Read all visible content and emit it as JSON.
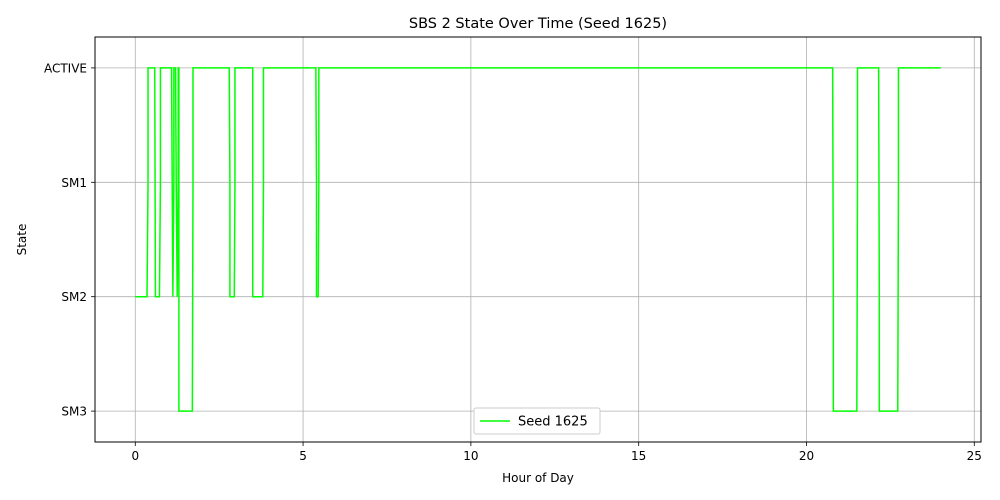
{
  "chart_data": {
    "type": "line",
    "step": true,
    "title": "SBS 2 State Over Time (Seed 1625)",
    "xlabel": "Hour of Day",
    "ylabel": "State",
    "xlim": [
      -1.2,
      25.2
    ],
    "xticks": [
      0,
      5,
      10,
      15,
      20,
      25
    ],
    "xtick_labels": [
      "0",
      "5",
      "10",
      "15",
      "20",
      "25"
    ],
    "ylim": [
      -0.27,
      3.27
    ],
    "yticks": [
      0,
      1,
      2,
      3
    ],
    "ytick_labels": [
      "SM3",
      "SM2",
      "SM1",
      "ACTIVE"
    ],
    "grid": true,
    "legend": {
      "position": "bottom-center"
    },
    "series": [
      {
        "name": "Seed 1625",
        "color": "#00ff00",
        "x": [
          0,
          0.35,
          0.38,
          0.38,
          0.58,
          0.6,
          0.72,
          0.75,
          0.75,
          1.08,
          1.1,
          1.12,
          1.15,
          1.15,
          1.2,
          1.22,
          1.25,
          1.28,
          1.28,
          1.3,
          1.3,
          1.7,
          1.72,
          1.72,
          2.8,
          2.82,
          2.82,
          2.95,
          2.97,
          2.97,
          3.5,
          3.5,
          3.8,
          3.82,
          3.82,
          5.38,
          5.4,
          5.4,
          5.45,
          5.47,
          5.47,
          20.78,
          20.8,
          20.8,
          21.5,
          21.52,
          21.52,
          22.15,
          22.17,
          22.17,
          22.72,
          22.74,
          22.74,
          24.0
        ],
        "y": [
          1,
          1,
          2,
          3,
          3,
          1,
          1,
          2,
          3,
          3,
          2,
          1,
          2,
          3,
          3,
          2,
          1,
          2,
          3,
          3,
          0,
          0,
          2,
          3,
          3,
          2,
          1,
          1,
          2,
          3,
          3,
          1,
          1,
          2,
          3,
          3,
          2,
          1,
          1,
          2,
          3,
          3,
          1,
          0,
          0,
          2,
          3,
          3,
          1,
          0,
          0,
          2,
          3,
          3
        ]
      }
    ]
  }
}
